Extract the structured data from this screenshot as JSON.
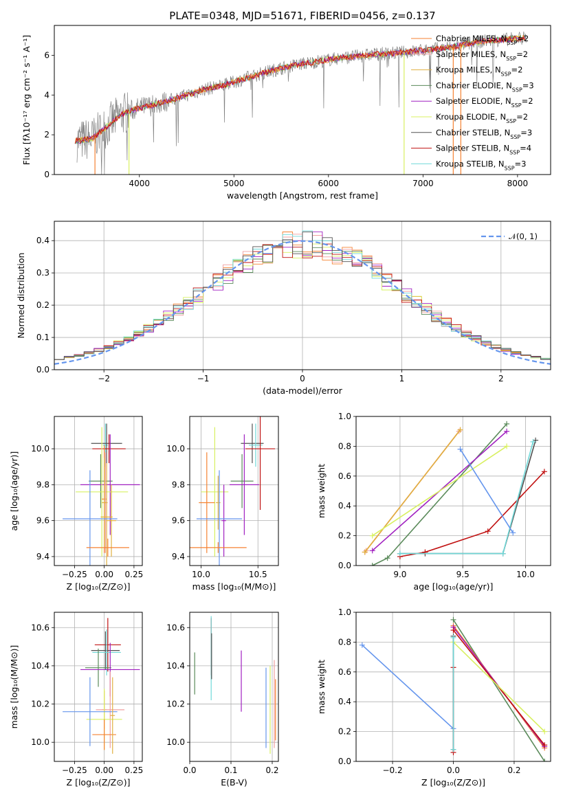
{
  "figure": {
    "title": "PLATE=0348, MJD=51671, FIBERID=0456, z=0.137"
  },
  "colors": {
    "Chabrier MILES": "#f58231",
    "Salpeter MILES": "#f0a0a0",
    "Kroupa MILES": "#e0b040",
    "Chabrier ELODIE": "#5a8a5a",
    "Salpeter ELODIE": "#a020c0",
    "Kroupa ELODIE": "#d8f060",
    "Chabrier STELIB": "#505050",
    "Salpeter STELIB": "#c01010",
    "Kroupa STELIB": "#70d8d8",
    "data": "#808080",
    "normal": "#6495ed"
  },
  "chart_data": [
    {
      "id": "spectrum",
      "type": "line",
      "title": "PLATE=0348, MJD=51671, FIBERID=0456, z=0.137",
      "xlabel": "wavelength [Angstrom, rest frame]",
      "ylabel": "Flux [fλ10⁻¹⁷ erg cm⁻² s⁻¹ A⁻¹]",
      "xlim": [
        3100,
        8350
      ],
      "ylim": [
        0,
        7.5
      ],
      "xticks": [
        4000,
        5000,
        6000,
        7000,
        8000
      ],
      "yticks": [
        0,
        2,
        4,
        6
      ],
      "grid": false,
      "legend_position": "top-right",
      "continuum_knots": {
        "x": [
          3350,
          3500,
          3600,
          3700,
          3800,
          3900,
          4000,
          4100,
          4300,
          4500,
          4700,
          4900,
          5100,
          5300,
          5500,
          5700,
          5900,
          6100,
          6300,
          6500,
          6700,
          6900,
          7100,
          7300,
          7500,
          7700,
          7900,
          8100
        ],
        "y": [
          1.7,
          1.8,
          2.2,
          2.6,
          3.0,
          3.2,
          3.35,
          3.45,
          3.7,
          4.0,
          4.3,
          4.5,
          4.8,
          5.1,
          5.35,
          5.55,
          5.7,
          5.85,
          5.95,
          6.05,
          6.1,
          6.2,
          6.3,
          6.4,
          6.6,
          6.75,
          6.8,
          6.9
        ]
      },
      "series": [
        {
          "name": "Chabrier MILES, Nₛₛₚ=2",
          "label": "Chabrier MILES, N",
          "nssp": "2"
        },
        {
          "name": "Salpeter MILES, Nₛₛₚ=2",
          "label": "Salpeter MILES, N",
          "nssp": "2"
        },
        {
          "name": "Kroupa MILES, Nₛₛₚ=2",
          "label": "Kroupa MILES, N",
          "nssp": "2"
        },
        {
          "name": "Chabrier ELODIE, Nₛₛₚ=3",
          "label": "Chabrier ELODIE, N",
          "nssp": "3"
        },
        {
          "name": "Salpeter ELODIE, Nₛₛₚ=2",
          "label": "Salpeter ELODIE, N",
          "nssp": "2"
        },
        {
          "name": "Kroupa ELODIE, Nₛₛₚ=2",
          "label": "Kroupa ELODIE, N",
          "nssp": "2"
        },
        {
          "name": "Chabrier STELIB, Nₛₛₚ=3",
          "label": "Chabrier STELIB, N",
          "nssp": "3"
        },
        {
          "name": "Salpeter STELIB, Nₛₛₚ=4",
          "label": "Salpeter STELIB, N",
          "nssp": "4"
        },
        {
          "name": "Kroupa STELIB, Nₛₛₚ=3",
          "label": "Kroupa STELIB, N",
          "nssp": "3"
        }
      ],
      "legend_subscript": "SSP"
    },
    {
      "id": "residuals",
      "type": "line",
      "xlabel": "(data-model)/error",
      "ylabel": "Normed distribution",
      "xlim": [
        -2.5,
        2.5
      ],
      "ylim": [
        0,
        0.46
      ],
      "xticks": [
        -2,
        -1,
        0,
        1,
        2
      ],
      "yticks": [
        0.0,
        0.1,
        0.2,
        0.3,
        0.4
      ],
      "grid": true,
      "legend": "𝒩(0, 1)",
      "legend_position": "top-right",
      "bin_width": 0.1
    },
    {
      "id": "age-vs-Z",
      "type": "scatter",
      "xlabel": "Z [log₁₀(Z/Z⊙)]",
      "ylabel": "age  [log₁₀(age/yr)]",
      "xlim": [
        -0.42,
        0.32
      ],
      "ylim": [
        9.35,
        10.18
      ],
      "xticks": [
        -0.25,
        0.0,
        0.25
      ],
      "xticklabels": [
        "−0.25",
        "0.00",
        "0.25"
      ],
      "yticks": [
        9.4,
        9.6,
        9.8,
        10.0
      ],
      "grid": true,
      "points": [
        {
          "model": "Kroupa STELIB",
          "x": 0.01,
          "xerr": 0.02,
          "y": 10.02,
          "yerr": 0.12
        },
        {
          "model": "Chabrier STELIB",
          "x": 0.02,
          "xerr": 0.13,
          "y": 10.03,
          "yerr": 0.11
        },
        {
          "model": "Salpeter STELIB",
          "x": 0.04,
          "xerr": 0.14,
          "y": 10.0,
          "yerr": 0.08
        },
        {
          "model": "Chabrier ELODIE",
          "x": -0.03,
          "xerr": 0.1,
          "y": 9.82,
          "yerr": 0.15
        },
        {
          "model": "Salpeter ELODIE",
          "x": 0.05,
          "xerr": 0.25,
          "y": 9.8,
          "yerr": 0.28
        },
        {
          "model": "Kroupa ELODIE",
          "x": -0.02,
          "xerr": 0.22,
          "y": 9.76,
          "yerr": 0.36
        },
        {
          "model": "Chabrier MILES",
          "x": 0.0,
          "xerr": 0.02,
          "y": 9.72,
          "yerr": 0.3
        },
        {
          "model": "Salpeter MILES",
          "x": 0.01,
          "xerr": 0.02,
          "y": 9.7,
          "yerr": 0.28
        },
        {
          "model": "Kroupa MILES",
          "x": 0.0,
          "xerr": 0.02,
          "y": 9.7,
          "yerr": 0.25
        },
        {
          "model": "Kroupa MILES (2)",
          "x": 0.02,
          "xerr": 0.05,
          "y": 9.62,
          "yerr": 0.3
        },
        {
          "model": "Kroupa MILES (3)",
          "x": 0.06,
          "xerr": 0.04,
          "y": 9.6,
          "yerr": 0.2
        },
        {
          "model": "Normal",
          "x": -0.12,
          "xerr": 0.23,
          "y": 9.61,
          "yerr": 0.27
        },
        {
          "model": "Chabrier MILES (2)",
          "x": 0.03,
          "xerr": 0.18,
          "y": 9.45,
          "yerr": 0.05
        }
      ]
    },
    {
      "id": "age-vs-mass",
      "type": "scatter",
      "xlabel": "mass [log₁₀(M/M⊙)]",
      "xlim": [
        9.9,
        10.68
      ],
      "ylim": [
        9.35,
        10.18
      ],
      "xticks": [
        10.0,
        10.5
      ],
      "yticks": [
        9.4,
        9.6,
        9.8,
        10.0
      ],
      "grid": true,
      "points": [
        {
          "model": "Chabrier STELIB",
          "x": 10.45,
          "xerr": 0.1,
          "y": 10.03,
          "yerr": 0.11
        },
        {
          "model": "Kroupa STELIB",
          "x": 10.48,
          "xerr": 0.06,
          "y": 10.02,
          "yerr": 0.12
        },
        {
          "model": "Salpeter STELIB",
          "x": 10.52,
          "xerr": 0.13,
          "y": 10.0,
          "yerr": 0.34
        },
        {
          "model": "Chabrier ELODIE",
          "x": 10.36,
          "xerr": 0.1,
          "y": 9.82,
          "yerr": 0.15
        },
        {
          "model": "Salpeter ELODIE",
          "x": 10.38,
          "xerr": 0.13,
          "y": 9.8,
          "yerr": 0.28
        },
        {
          "model": "Kroupa ELODIE",
          "x": 10.12,
          "xerr": 0.12,
          "y": 9.76,
          "yerr": 0.36
        },
        {
          "model": "Chabrier MILES",
          "x": 10.05,
          "xerr": 0.07,
          "y": 9.7,
          "yerr": 0.28
        },
        {
          "model": "Kroupa MILES",
          "x": 10.15,
          "xerr": 0.02,
          "y": 9.7,
          "yerr": 0.15
        },
        {
          "model": "Salpeter ELODIE (2)",
          "x": 10.2,
          "xerr": 0.02,
          "y": 9.6,
          "yerr": 0.2
        },
        {
          "model": "Normal",
          "x": 10.16,
          "xerr": 0.2,
          "y": 9.61,
          "yerr": 0.27
        },
        {
          "model": "Chabrier MILES (2)",
          "x": 10.15,
          "xerr": 0.25,
          "y": 9.45,
          "yerr": 0.03
        }
      ]
    },
    {
      "id": "weight-vs-age",
      "type": "line",
      "xlabel": "age  [log₁₀(age/yr)]",
      "ylabel": "mass weight",
      "xlim": [
        8.65,
        10.2
      ],
      "ylim": [
        0,
        1.0
      ],
      "xticks": [
        9.0,
        9.5,
        10.0
      ],
      "yticks": [
        0.0,
        0.2,
        0.4,
        0.6,
        0.8,
        1.0
      ],
      "grid": true,
      "series": [
        {
          "model": "Chabrier MILES",
          "x": [
            8.72,
            9.48
          ],
          "y": [
            0.09,
            0.91
          ]
        },
        {
          "model": "Salpeter MILES",
          "x": [
            8.73,
            9.47
          ],
          "y": [
            0.1,
            0.9
          ]
        },
        {
          "model": "Kroupa MILES",
          "x": [
            8.72,
            9.48
          ],
          "y": [
            0.09,
            0.91
          ]
        },
        {
          "model": "Chabrier ELODIE",
          "x": [
            8.78,
            8.9,
            9.85
          ],
          "y": [
            0.0,
            0.05,
            0.95
          ]
        },
        {
          "model": "Salpeter ELODIE",
          "x": [
            8.78,
            9.85
          ],
          "y": [
            0.1,
            0.9
          ]
        },
        {
          "model": "Kroupa ELODIE",
          "x": [
            8.78,
            9.85
          ],
          "y": [
            0.2,
            0.8
          ]
        },
        {
          "model": "Chabrier STELIB",
          "x": [
            9.0,
            9.2,
            9.82,
            10.08
          ],
          "y": [
            0.08,
            0.08,
            0.08,
            0.84
          ]
        },
        {
          "model": "Salpeter STELIB",
          "x": [
            9.0,
            9.2,
            9.7,
            10.15
          ],
          "y": [
            0.06,
            0.09,
            0.23,
            0.63
          ]
        },
        {
          "model": "Kroupa STELIB",
          "x": [
            9.0,
            9.82,
            10.06
          ],
          "y": [
            0.08,
            0.08,
            0.83
          ]
        },
        {
          "model": "Normal",
          "x": [
            9.48,
            9.9
          ],
          "y": [
            0.78,
            0.22
          ]
        }
      ]
    },
    {
      "id": "mass-vs-Z",
      "type": "scatter",
      "xlabel": "Z [log₁₀(Z/Z⊙)]",
      "ylabel": "mass [log₁₀(M/M⊙)]",
      "xlim": [
        -0.42,
        0.32
      ],
      "ylim": [
        9.9,
        10.68
      ],
      "xticks": [
        -0.25,
        0.0,
        0.25
      ],
      "xticklabels": [
        "−0.25",
        "0.00",
        "0.25"
      ],
      "yticks": [
        10.0,
        10.2,
        10.4,
        10.6
      ],
      "grid": true,
      "points": [
        {
          "model": "Salpeter STELIB",
          "x": 0.03,
          "xerr": 0.11,
          "y": 10.51,
          "yerr": 0.14
        },
        {
          "model": "Chabrier STELIB",
          "x": 0.01,
          "xerr": 0.12,
          "y": 10.48,
          "yerr": 0.1
        },
        {
          "model": "Kroupa STELIB",
          "x": 0.02,
          "xerr": 0.12,
          "y": 10.47,
          "yerr": 0.12
        },
        {
          "model": "Chabrier ELODIE",
          "x": -0.05,
          "xerr": 0.11,
          "y": 10.39,
          "yerr": 0.1
        },
        {
          "model": "Salpeter ELODIE",
          "x": 0.05,
          "xerr": 0.25,
          "y": 10.38,
          "yerr": 0.14
        },
        {
          "model": "Chabrier MILES",
          "x": 0.0,
          "xerr": 0.02,
          "y": 10.17,
          "yerr": 0.1
        },
        {
          "model": "Salpeter MILES",
          "x": 0.05,
          "xerr": 0.12,
          "y": 10.17,
          "yerr": 0.2
        },
        {
          "model": "Kroupa ELODIE",
          "x": 0.0,
          "xerr": 0.15,
          "y": 10.12,
          "yerr": 0.16
        },
        {
          "model": "Normal",
          "x": -0.12,
          "xerr": 0.23,
          "y": 10.16,
          "yerr": 0.18
        },
        {
          "model": "Chabrier MILES (2)",
          "x": 0.0,
          "xerr": 0.1,
          "y": 10.04,
          "yerr": 0.08
        },
        {
          "model": "Kroupa MILES",
          "x": 0.07,
          "xerr": 0.02,
          "y": 10.14,
          "yerr": 0.2
        }
      ]
    },
    {
      "id": "mass-vs-EBV",
      "type": "scatter",
      "xlabel": "E(B-V)",
      "xlim": [
        0.0,
        0.215
      ],
      "ylim": [
        9.9,
        10.68
      ],
      "xticks": [
        0.0,
        0.1,
        0.2
      ],
      "yticks": [
        10.0,
        10.2,
        10.4,
        10.6
      ],
      "grid": true,
      "points": [
        {
          "model": "Chabrier ELODIE",
          "x": 0.012,
          "y": 10.36,
          "yerr": 0.11
        },
        {
          "model": "Salpeter STELIB",
          "x": 0.052,
          "y": 10.5,
          "yerr": 0.15
        },
        {
          "model": "Kroupa STELIB",
          "x": 0.052,
          "y": 10.44,
          "yerr": 0.22
        },
        {
          "model": "Chabrier STELIB",
          "x": 0.053,
          "y": 10.45,
          "yerr": 0.12
        },
        {
          "model": "Salpeter ELODIE",
          "x": 0.125,
          "y": 10.32,
          "yerr": 0.16
        },
        {
          "model": "Normal",
          "x": 0.185,
          "y": 10.18,
          "yerr": 0.21
        },
        {
          "model": "Kroupa ELODIE",
          "x": 0.195,
          "y": 10.17,
          "yerr": 0.23
        },
        {
          "model": "Salpeter MILES",
          "x": 0.205,
          "y": 10.2,
          "yerr": 0.23
        },
        {
          "model": "Chabrier MILES",
          "x": 0.208,
          "y": 10.17,
          "yerr": 0.16
        }
      ]
    },
    {
      "id": "weight-vs-Z",
      "type": "line",
      "xlabel": "Z [log₁₀(Z/Z⊙)]",
      "ylabel": "mass weight",
      "xlim": [
        -0.32,
        0.32
      ],
      "ylim": [
        0,
        1.0
      ],
      "xticks": [
        -0.2,
        0.0,
        0.2
      ],
      "xticklabels": [
        "−0.2",
        "0.0",
        "0.2"
      ],
      "yticks": [
        0.0,
        0.2,
        0.4,
        0.6,
        0.8,
        1.0
      ],
      "grid": true,
      "series": [
        {
          "model": "Normal",
          "x": [
            -0.3,
            0.0
          ],
          "y": [
            0.78,
            0.22
          ]
        },
        {
          "model": "Chabrier ELODIE",
          "x": [
            0.0,
            0.3
          ],
          "y": [
            0.95,
            0.0
          ]
        },
        {
          "model": "Chabrier MILES",
          "x": [
            0.0,
            0.3
          ],
          "y": [
            0.91,
            0.09
          ]
        },
        {
          "model": "Salpeter ELODIE",
          "x": [
            0.0,
            0.3
          ],
          "y": [
            0.9,
            0.1
          ]
        },
        {
          "model": "Salpeter STELIB",
          "x": [
            0.0,
            0.3
          ],
          "y": [
            0.88,
            0.11
          ]
        },
        {
          "model": "Kroupa ELODIE",
          "x": [
            0.0,
            0.3
          ],
          "y": [
            0.8,
            0.2
          ]
        },
        {
          "model": "Chabrier STELIB",
          "x": [
            0.0,
            0.0
          ],
          "y": [
            0.08,
            0.84
          ]
        },
        {
          "model": "Salpeter STELIB (2)",
          "x": [
            0.0,
            0.0
          ],
          "y": [
            0.06,
            0.63
          ]
        },
        {
          "model": "Kroupa STELIB",
          "x": [
            0.0,
            0.0
          ],
          "y": [
            0.08,
            0.83
          ]
        }
      ]
    }
  ]
}
